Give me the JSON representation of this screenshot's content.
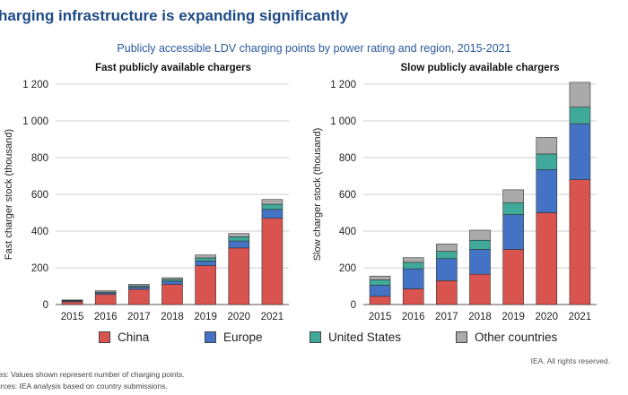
{
  "header": {
    "title": "harging infrastructure is expanding significantly",
    "subtitle": "Publicly accessible LDV charging points by power rating and region, 2015-2021"
  },
  "colors": {
    "China": "#d9534f",
    "Europe": "#4472c4",
    "United States": "#3fa99a",
    "Other countries": "#aaaaaa"
  },
  "legend": [
    "China",
    "Europe",
    "United States",
    "Other countries"
  ],
  "chart_data": [
    {
      "type": "bar",
      "stacked": true,
      "title": "Fast  publicly available chargers",
      "ylabel": "Fast charger stock (thousand)",
      "xlabel": "",
      "categories": [
        "2015",
        "2016",
        "2017",
        "2018",
        "2019",
        "2020",
        "2021"
      ],
      "ylim": [
        0,
        1200
      ],
      "yticks": [
        "0",
        "200",
        "400",
        "600",
        "800",
        "1 000",
        "1 200"
      ],
      "grid": true,
      "series": [
        {
          "name": "China",
          "values": [
            15,
            55,
            83,
            110,
            212,
            308,
            470
          ]
        },
        {
          "name": "Europe",
          "values": [
            5,
            8,
            12,
            17,
            25,
            38,
            48
          ]
        },
        {
          "name": "United States",
          "values": [
            3,
            5,
            7,
            10,
            17,
            23,
            28
          ]
        },
        {
          "name": "Other countries",
          "values": [
            2,
            7,
            8,
            9,
            16,
            18,
            26
          ]
        }
      ]
    },
    {
      "type": "bar",
      "stacked": true,
      "title": "Slow publicly available chargers",
      "ylabel": "Slow charger stock (thousand)",
      "xlabel": "",
      "categories": [
        "2015",
        "2016",
        "2017",
        "2018",
        "2019",
        "2020",
        "2021"
      ],
      "ylim": [
        0,
        1200
      ],
      "yticks": [
        "0",
        "200",
        "400",
        "600",
        "800",
        "1 000",
        "1 200"
      ],
      "grid": true,
      "series": [
        {
          "name": "China",
          "values": [
            45,
            85,
            130,
            165,
            300,
            500,
            680
          ]
        },
        {
          "name": "Europe",
          "values": [
            60,
            110,
            120,
            135,
            190,
            235,
            305
          ]
        },
        {
          "name": "United States",
          "values": [
            30,
            35,
            40,
            50,
            65,
            85,
            90
          ]
        },
        {
          "name": "Other countries",
          "values": [
            20,
            25,
            40,
            55,
            70,
            90,
            135
          ]
        }
      ]
    }
  ],
  "footer": {
    "credit": "IEA. All rights reserved.",
    "note1": "tes: Values shown represent number of charging points.",
    "note2": "urces: IEA analysis based on country submissions."
  }
}
